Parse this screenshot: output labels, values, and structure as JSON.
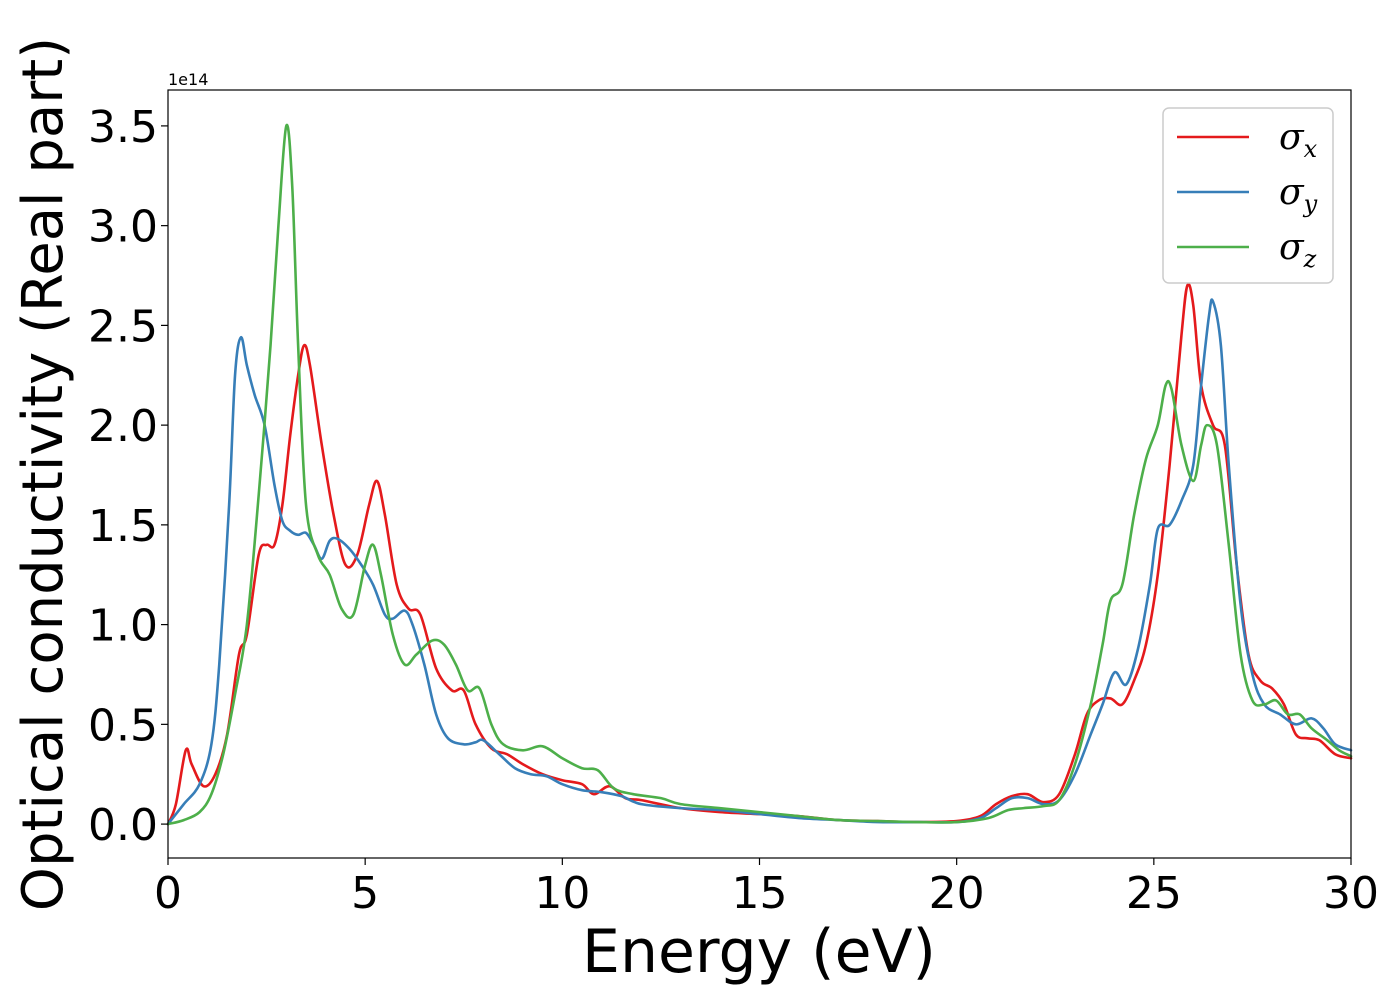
{
  "chart_data": {
    "type": "line",
    "xlabel": "Energy (eV)",
    "ylabel": "Optical conductivity (Real part)",
    "y_offset_label": "1e14",
    "y_scale": 100000000000000.0,
    "xlim": [
      0,
      30
    ],
    "ylim": [
      -0.17,
      3.68
    ],
    "x_ticks": [
      0,
      5,
      10,
      15,
      20,
      25,
      30
    ],
    "x_tick_labels": [
      "0",
      "5",
      "10",
      "15",
      "20",
      "25",
      "30"
    ],
    "y_ticks": [
      0.0,
      0.5,
      1.0,
      1.5,
      2.0,
      2.5,
      3.0,
      3.5
    ],
    "y_tick_labels": [
      "0.0",
      "0.5",
      "1.0",
      "1.5",
      "2.0",
      "2.5",
      "3.0",
      "3.5"
    ],
    "grid": false,
    "legend": "top-right",
    "series": [
      {
        "name": "σx",
        "label_base": "σ",
        "label_sub": "x",
        "color": "#e41a1c",
        "points": [
          [
            0,
            0
          ],
          [
            0.2,
            0.1
          ],
          [
            0.45,
            0.37
          ],
          [
            0.6,
            0.3
          ],
          [
            0.9,
            0.19
          ],
          [
            1.2,
            0.25
          ],
          [
            1.5,
            0.45
          ],
          [
            1.8,
            0.85
          ],
          [
            2.0,
            0.95
          ],
          [
            2.3,
            1.35
          ],
          [
            2.5,
            1.4
          ],
          [
            2.7,
            1.4
          ],
          [
            2.9,
            1.6
          ],
          [
            3.1,
            1.95
          ],
          [
            3.3,
            2.25
          ],
          [
            3.45,
            2.4
          ],
          [
            3.6,
            2.3
          ],
          [
            3.9,
            1.9
          ],
          [
            4.2,
            1.55
          ],
          [
            4.5,
            1.3
          ],
          [
            4.8,
            1.35
          ],
          [
            5.1,
            1.6
          ],
          [
            5.3,
            1.72
          ],
          [
            5.5,
            1.55
          ],
          [
            5.8,
            1.2
          ],
          [
            6.1,
            1.08
          ],
          [
            6.4,
            1.05
          ],
          [
            6.8,
            0.78
          ],
          [
            7.2,
            0.67
          ],
          [
            7.5,
            0.67
          ],
          [
            7.8,
            0.5
          ],
          [
            8.2,
            0.38
          ],
          [
            8.6,
            0.35
          ],
          [
            9.0,
            0.3
          ],
          [
            9.5,
            0.25
          ],
          [
            10.0,
            0.22
          ],
          [
            10.5,
            0.2
          ],
          [
            10.8,
            0.15
          ],
          [
            11.2,
            0.19
          ],
          [
            11.6,
            0.13
          ],
          [
            12.0,
            0.12
          ],
          [
            13.0,
            0.08
          ],
          [
            14.0,
            0.06
          ],
          [
            15.0,
            0.05
          ],
          [
            16.0,
            0.04
          ],
          [
            17.0,
            0.02
          ],
          [
            18.0,
            0.015
          ],
          [
            19.0,
            0.01
          ],
          [
            20.0,
            0.015
          ],
          [
            20.6,
            0.04
          ],
          [
            21.0,
            0.1
          ],
          [
            21.4,
            0.14
          ],
          [
            21.8,
            0.15
          ],
          [
            22.2,
            0.11
          ],
          [
            22.6,
            0.15
          ],
          [
            23.0,
            0.35
          ],
          [
            23.3,
            0.55
          ],
          [
            23.6,
            0.62
          ],
          [
            23.9,
            0.63
          ],
          [
            24.2,
            0.6
          ],
          [
            24.5,
            0.72
          ],
          [
            24.8,
            0.9
          ],
          [
            25.1,
            1.25
          ],
          [
            25.4,
            1.8
          ],
          [
            25.7,
            2.45
          ],
          [
            25.85,
            2.7
          ],
          [
            26.0,
            2.6
          ],
          [
            26.2,
            2.2
          ],
          [
            26.5,
            2.0
          ],
          [
            26.8,
            1.9
          ],
          [
            27.1,
            1.3
          ],
          [
            27.4,
            0.85
          ],
          [
            27.7,
            0.72
          ],
          [
            28.0,
            0.68
          ],
          [
            28.3,
            0.6
          ],
          [
            28.6,
            0.45
          ],
          [
            28.9,
            0.43
          ],
          [
            29.2,
            0.42
          ],
          [
            29.6,
            0.35
          ],
          [
            30.0,
            0.33
          ]
        ]
      },
      {
        "name": "σy",
        "label_base": "σ",
        "label_sub": "y",
        "color": "#377eb8",
        "points": [
          [
            0,
            0
          ],
          [
            0.4,
            0.1
          ],
          [
            0.8,
            0.2
          ],
          [
            1.1,
            0.4
          ],
          [
            1.3,
            0.8
          ],
          [
            1.55,
            1.6
          ],
          [
            1.7,
            2.25
          ],
          [
            1.85,
            2.44
          ],
          [
            2.0,
            2.3
          ],
          [
            2.2,
            2.15
          ],
          [
            2.45,
            2.0
          ],
          [
            2.7,
            1.7
          ],
          [
            2.9,
            1.52
          ],
          [
            3.1,
            1.47
          ],
          [
            3.3,
            1.45
          ],
          [
            3.5,
            1.46
          ],
          [
            3.7,
            1.4
          ],
          [
            3.9,
            1.33
          ],
          [
            4.1,
            1.42
          ],
          [
            4.3,
            1.43
          ],
          [
            4.6,
            1.38
          ],
          [
            4.9,
            1.3
          ],
          [
            5.2,
            1.2
          ],
          [
            5.5,
            1.05
          ],
          [
            5.7,
            1.03
          ],
          [
            6.0,
            1.07
          ],
          [
            6.2,
            1.0
          ],
          [
            6.5,
            0.8
          ],
          [
            6.8,
            0.55
          ],
          [
            7.1,
            0.43
          ],
          [
            7.5,
            0.4
          ],
          [
            7.8,
            0.41
          ],
          [
            8.0,
            0.42
          ],
          [
            8.4,
            0.35
          ],
          [
            8.8,
            0.28
          ],
          [
            9.2,
            0.25
          ],
          [
            9.6,
            0.24
          ],
          [
            10.0,
            0.2
          ],
          [
            10.5,
            0.17
          ],
          [
            11.0,
            0.16
          ],
          [
            11.5,
            0.14
          ],
          [
            12.0,
            0.1
          ],
          [
            13.0,
            0.08
          ],
          [
            14.0,
            0.07
          ],
          [
            15.0,
            0.05
          ],
          [
            16.0,
            0.03
          ],
          [
            17.0,
            0.02
          ],
          [
            18.0,
            0.01
          ],
          [
            19.0,
            0.01
          ],
          [
            20.0,
            0.01
          ],
          [
            20.6,
            0.03
          ],
          [
            21.0,
            0.08
          ],
          [
            21.4,
            0.13
          ],
          [
            21.8,
            0.13
          ],
          [
            22.2,
            0.1
          ],
          [
            22.6,
            0.12
          ],
          [
            23.0,
            0.25
          ],
          [
            23.4,
            0.45
          ],
          [
            23.7,
            0.6
          ],
          [
            24.0,
            0.76
          ],
          [
            24.3,
            0.7
          ],
          [
            24.6,
            0.88
          ],
          [
            24.9,
            1.2
          ],
          [
            25.1,
            1.48
          ],
          [
            25.4,
            1.5
          ],
          [
            25.7,
            1.62
          ],
          [
            26.0,
            1.8
          ],
          [
            26.2,
            2.2
          ],
          [
            26.4,
            2.55
          ],
          [
            26.5,
            2.62
          ],
          [
            26.7,
            2.4
          ],
          [
            26.9,
            1.8
          ],
          [
            27.2,
            1.1
          ],
          [
            27.5,
            0.75
          ],
          [
            27.8,
            0.6
          ],
          [
            28.2,
            0.55
          ],
          [
            28.6,
            0.5
          ],
          [
            29.0,
            0.53
          ],
          [
            29.3,
            0.48
          ],
          [
            29.6,
            0.4
          ],
          [
            30.0,
            0.37
          ]
        ]
      },
      {
        "name": "σz",
        "label_base": "σ",
        "label_sub": "z",
        "color": "#4daf4a",
        "points": [
          [
            0,
            0
          ],
          [
            0.4,
            0.02
          ],
          [
            0.8,
            0.06
          ],
          [
            1.1,
            0.15
          ],
          [
            1.4,
            0.35
          ],
          [
            1.7,
            0.65
          ],
          [
            2.0,
            1.0
          ],
          [
            2.3,
            1.65
          ],
          [
            2.6,
            2.4
          ],
          [
            2.8,
            3.0
          ],
          [
            3.0,
            3.5
          ],
          [
            3.15,
            3.2
          ],
          [
            3.3,
            2.4
          ],
          [
            3.5,
            1.6
          ],
          [
            3.8,
            1.35
          ],
          [
            4.1,
            1.25
          ],
          [
            4.4,
            1.08
          ],
          [
            4.7,
            1.05
          ],
          [
            5.0,
            1.3
          ],
          [
            5.2,
            1.4
          ],
          [
            5.4,
            1.25
          ],
          [
            5.7,
            0.95
          ],
          [
            6.0,
            0.8
          ],
          [
            6.3,
            0.85
          ],
          [
            6.7,
            0.92
          ],
          [
            7.0,
            0.9
          ],
          [
            7.3,
            0.8
          ],
          [
            7.6,
            0.67
          ],
          [
            7.9,
            0.68
          ],
          [
            8.2,
            0.5
          ],
          [
            8.5,
            0.4
          ],
          [
            9.0,
            0.37
          ],
          [
            9.5,
            0.39
          ],
          [
            10.0,
            0.33
          ],
          [
            10.5,
            0.28
          ],
          [
            10.9,
            0.27
          ],
          [
            11.3,
            0.18
          ],
          [
            11.8,
            0.15
          ],
          [
            12.5,
            0.13
          ],
          [
            13.0,
            0.1
          ],
          [
            14.0,
            0.08
          ],
          [
            15.0,
            0.06
          ],
          [
            16.0,
            0.04
          ],
          [
            17.0,
            0.02
          ],
          [
            18.0,
            0.015
          ],
          [
            19.0,
            0.01
          ],
          [
            20.0,
            0.01
          ],
          [
            20.8,
            0.03
          ],
          [
            21.3,
            0.07
          ],
          [
            21.7,
            0.08
          ],
          [
            22.2,
            0.09
          ],
          [
            22.6,
            0.12
          ],
          [
            23.0,
            0.3
          ],
          [
            23.4,
            0.6
          ],
          [
            23.7,
            0.9
          ],
          [
            23.9,
            1.12
          ],
          [
            24.2,
            1.2
          ],
          [
            24.5,
            1.55
          ],
          [
            24.8,
            1.83
          ],
          [
            25.1,
            2.0
          ],
          [
            25.3,
            2.2
          ],
          [
            25.45,
            2.18
          ],
          [
            25.7,
            1.9
          ],
          [
            26.0,
            1.72
          ],
          [
            26.2,
            1.9
          ],
          [
            26.35,
            2.0
          ],
          [
            26.6,
            1.9
          ],
          [
            26.9,
            1.4
          ],
          [
            27.2,
            0.85
          ],
          [
            27.5,
            0.62
          ],
          [
            27.8,
            0.6
          ],
          [
            28.1,
            0.62
          ],
          [
            28.4,
            0.55
          ],
          [
            28.7,
            0.55
          ],
          [
            29.0,
            0.48
          ],
          [
            29.4,
            0.42
          ],
          [
            29.7,
            0.37
          ],
          [
            30.0,
            0.34
          ]
        ]
      }
    ]
  }
}
